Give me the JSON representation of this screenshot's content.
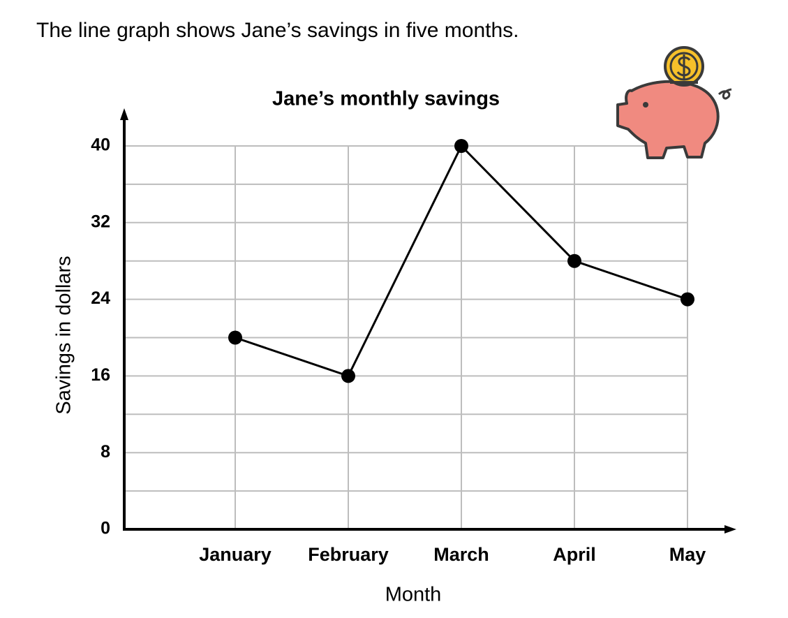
{
  "intro": "The line graph shows Jane’s savings in five months.",
  "chart_data": {
    "type": "line",
    "title": "Jane’s monthly savings",
    "x_label": "Month",
    "y_label": "Savings in dollars",
    "categories": [
      "January",
      "February",
      "March",
      "April",
      "May"
    ],
    "values": [
      20,
      16,
      40,
      28,
      24
    ],
    "color": "#000000",
    "ylim": [
      0,
      40
    ],
    "yticks": [
      0,
      8,
      16,
      24,
      32,
      40
    ],
    "minor_yticks": [
      4,
      12,
      20,
      28,
      36
    ],
    "grid": true
  }
}
